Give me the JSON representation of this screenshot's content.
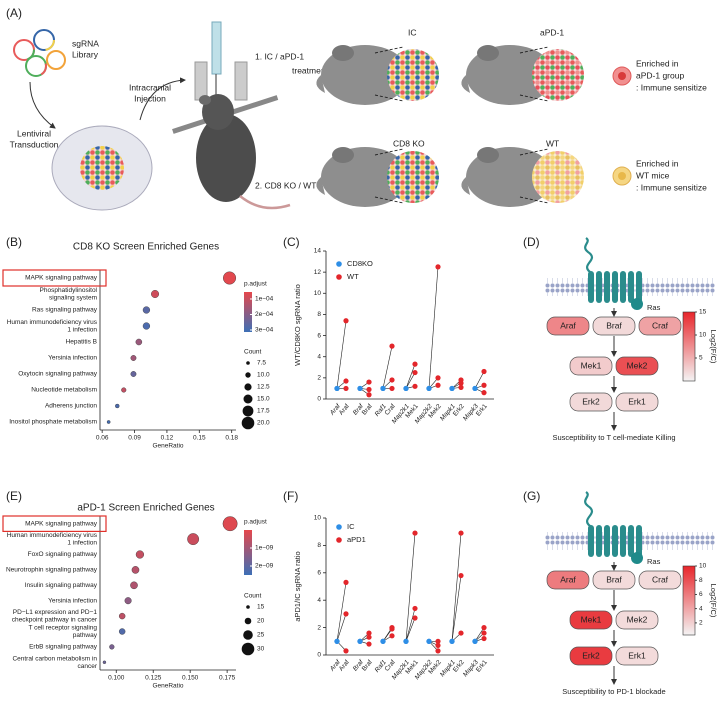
{
  "panel_labels": [
    "(A)",
    "(B)",
    "(C)",
    "(D)",
    "(E)",
    "(F)",
    "(G)"
  ],
  "schematic": {
    "library": [
      "sgRNA",
      "Library"
    ],
    "transduction": [
      "Lentiviral",
      "Transduction"
    ],
    "injection": [
      "Intracranial",
      "Injection"
    ],
    "treatment_1": [
      "1. IC / aPD-1",
      "treatment"
    ],
    "treatment_2": "2. CD8 KO / WT",
    "groups": [
      "IC",
      "aPD-1",
      "CD8 KO",
      "WT"
    ],
    "enriched_apd1": [
      "Enriched in",
      "aPD-1 group",
      ": Immune sensitize"
    ],
    "enriched_wt": [
      "Enriched in",
      "WT mice",
      ": Immune sensitize"
    ]
  },
  "chart_data": [
    {
      "type": "dot",
      "title": "CD8 KO Screen Enriched Genes",
      "x_label": "GeneRatio",
      "categories": [
        [
          "MAPK signaling pathway"
        ],
        [
          "Phosphatidylinositol",
          "signaling system"
        ],
        [
          "Ras signaling pathway"
        ],
        [
          "Human immunodeficiency virus",
          "1 infection"
        ],
        [
          "Hepatitis B"
        ],
        [
          "Yersinia infection"
        ],
        [
          "Oxytocin signaling pathway"
        ],
        [
          "Nucleotide metabolism"
        ],
        [
          "Adherens junction"
        ],
        [
          "Inositol phosphate metabolism"
        ]
      ],
      "values": [
        0.178,
        0.109,
        0.101,
        0.101,
        0.094,
        0.089,
        0.089,
        0.08,
        0.074,
        0.066
      ],
      "counts": [
        20,
        13,
        12,
        12,
        11,
        10,
        10,
        9,
        8,
        7
      ],
      "p_adjust": [
        6e-05,
        9e-05,
        0.00027,
        0.00029,
        0.00017,
        0.00016,
        0.00025,
        0.00011,
        0.00029,
        0.0003
      ],
      "xlim": [
        0.058,
        0.184
      ],
      "xticks": [
        0.06,
        0.09,
        0.12,
        0.15,
        0.18
      ],
      "color_legend": {
        "title": "p.adjust",
        "lim": [
          5.5e-05,
          0.000313
        ],
        "colors": [
          "#e5474c",
          "#3d6fb6"
        ],
        "ticks": [
          {
            "value": 0.0001,
            "label": "1e−04"
          },
          {
            "value": 0.0002,
            "label": "2e−04"
          },
          {
            "value": 0.0003,
            "label": "3e−04"
          }
        ]
      },
      "size_legend": {
        "title": "Count",
        "ticks": [
          7.5,
          {
            "value": 10,
            "label": "10.0"
          },
          12.5,
          {
            "value": 15,
            "label": "15.0"
          },
          17.5,
          {
            "value": 20,
            "label": "20.0"
          }
        ]
      }
    },
    {
      "type": "paired_dot",
      "y_label": "WT/CD8KO sgRNA ratio",
      "categories": [
        "Araf",
        "Araf",
        "Braf",
        "Braf",
        "Raf1",
        "Craf",
        "Map2k1",
        "Mek1",
        "Map2k2",
        "Mek2",
        "Mapk1",
        "Erk2",
        "Mapk3",
        "Erk1"
      ],
      "series": [
        {
          "name": "CD8KO",
          "color": "#2e8ee6",
          "values": [
            [
              1,
              1,
              1
            ],
            null,
            [
              1,
              1,
              1
            ],
            null,
            [
              1,
              1,
              1
            ],
            null,
            [
              1,
              1,
              1
            ],
            null,
            [
              1,
              1,
              1
            ],
            null,
            [
              1,
              1,
              1
            ],
            null,
            [
              1,
              1,
              1
            ],
            null
          ]
        },
        {
          "name": "WT",
          "color": "#e3262b",
          "values": [
            null,
            [
              7.4,
              1.7,
              1.0
            ],
            null,
            [
              1.6,
              0.9,
              0.4
            ],
            null,
            [
              5.0,
              1.8,
              1.0
            ],
            null,
            [
              3.3,
              2.5,
              1.2
            ],
            null,
            [
              12.5,
              2.0,
              1.3
            ],
            null,
            [
              1.8,
              1.5,
              1.1
            ],
            null,
            [
              2.6,
              1.3,
              0.6
            ]
          ]
        }
      ],
      "ylim": [
        0,
        14
      ],
      "yticks": [
        0,
        2,
        4,
        6,
        8,
        10,
        12,
        14
      ]
    },
    {
      "type": "dot",
      "title": "aPD-1 Screen Enriched Genes",
      "x_label": "GeneRatio",
      "categories": [
        [
          "MAPK signaling pathway"
        ],
        [
          "Human immunodeficiency virus",
          "1 infection"
        ],
        [
          "FoxO signaling pathway"
        ],
        [
          "Neurotrophin signaling pathway"
        ],
        [
          "Insulin signaling pathway"
        ],
        [
          "Yersinia infection"
        ],
        [
          "PD−L1 expression and PD−1",
          "checkpoint pathway in cancer"
        ],
        [
          "T cell receptor signaling",
          "pathway"
        ],
        [
          "ErbB signaling pathway"
        ],
        [
          "Central carbon metabolism in",
          "cancer"
        ]
      ],
      "values": [
        0.177,
        0.152,
        0.116,
        0.113,
        0.112,
        0.108,
        0.104,
        0.104,
        0.097,
        0.092
      ],
      "counts": [
        33,
        28,
        22,
        21,
        21,
        20,
        19,
        19,
        17,
        14
      ],
      "p_adjust": [
        1e-10,
        4e-10,
        5e-10,
        7e-10,
        8e-10,
        1.3e-09,
        6e-10,
        2.2e-09,
        1.6e-09,
        1.8e-09
      ],
      "xlim": [
        0.089,
        0.181
      ],
      "xticks": [
        {
          "value": 0.1,
          "label": "0.100"
        },
        0.125,
        {
          "value": 0.15,
          "label": "0.150"
        },
        0.175
      ],
      "color_legend": {
        "title": "p.adjust",
        "lim": [
          0,
          2.5e-09
        ],
        "colors": [
          "#e5474c",
          "#3d6fb6"
        ],
        "ticks": [
          {
            "value": 1e-09,
            "label": "1e−09"
          },
          {
            "value": 2e-09,
            "label": "2e−09"
          }
        ]
      },
      "size_legend": {
        "title": "Count",
        "ticks": [
          15,
          20,
          25,
          30
        ]
      }
    },
    {
      "type": "paired_dot",
      "y_label": "aPD1/IC sgRNA ratio",
      "categories": [
        "Araf",
        "Araf",
        "Braf",
        "Braf",
        "Raf1",
        "Craf",
        "Map2k1",
        "Mek1",
        "Map2k2",
        "Mek2",
        "Mapk1",
        "Erk2",
        "Mapk3",
        "Erk1"
      ],
      "series": [
        {
          "name": "IC",
          "color": "#2e8ee6",
          "values": [
            [
              1,
              1,
              1
            ],
            null,
            [
              1,
              1,
              1
            ],
            null,
            [
              1,
              1,
              1
            ],
            null,
            [
              1,
              1,
              1
            ],
            null,
            [
              1,
              1,
              1
            ],
            null,
            [
              1,
              1,
              1
            ],
            null,
            [
              1,
              1,
              1
            ],
            null
          ]
        },
        {
          "name": "aPD1",
          "color": "#e3262b",
          "values": [
            null,
            [
              5.3,
              3.0,
              0.3
            ],
            null,
            [
              1.6,
              1.3,
              0.8
            ],
            null,
            [
              2.0,
              1.9,
              1.4
            ],
            null,
            [
              8.9,
              3.4,
              2.7
            ],
            null,
            [
              1.0,
              0.7,
              0.3
            ],
            null,
            [
              8.9,
              5.8,
              1.6
            ],
            null,
            [
              2.0,
              1.6,
              1.2
            ]
          ]
        }
      ],
      "ylim": [
        0,
        10
      ],
      "yticks": [
        0,
        2,
        4,
        6,
        8,
        10
      ]
    }
  ],
  "diagrams": [
    {
      "protein": "Ras",
      "caption": "Susceptibility to T cell-mediate Killing",
      "nodes": [
        {
          "label": "Araf",
          "value": 8
        },
        {
          "label": "Braf",
          "value": 2
        },
        {
          "label": "Craf",
          "value": 6
        },
        {
          "label": "Mek1",
          "value": 3
        },
        {
          "label": "Mek2",
          "value": 12
        },
        {
          "label": "Erk2",
          "value": 2
        },
        {
          "label": "Erk1",
          "value": 2
        }
      ],
      "colorbar": {
        "title": "Log2(F/C)",
        "lim": [
          0,
          15
        ],
        "ticks": [
          5,
          10,
          15
        ],
        "colors": [
          "#f4f4f4",
          "#e8262b"
        ]
      }
    },
    {
      "protein": "Ras",
      "caption": "Susceptibility to PD-1 blockade",
      "nodes": [
        {
          "label": "Araf",
          "value": 6
        },
        {
          "label": "Braf",
          "value": 1.5
        },
        {
          "label": "Craf",
          "value": 1.5
        },
        {
          "label": "Mek1",
          "value": 9
        },
        {
          "label": "Mek2",
          "value": 1.5
        },
        {
          "label": "Erk2",
          "value": 9
        },
        {
          "label": "Erk1",
          "value": 1.5
        }
      ],
      "colorbar": {
        "title": "Log2(F/C)",
        "lim": [
          0.3,
          10
        ],
        "ticks": [
          2,
          4,
          6,
          8,
          10
        ],
        "colors": [
          "#f4f4f4",
          "#e8262b"
        ]
      }
    }
  ]
}
